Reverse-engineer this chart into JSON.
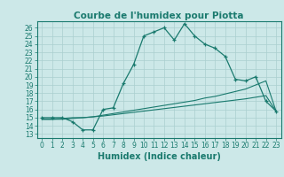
{
  "title": "Courbe de l'humidex pour Piotta",
  "xlabel": "Humidex (Indice chaleur)",
  "background_color": "#cce8e8",
  "line_color": "#1a7a6e",
  "grid_color": "#aacfcf",
  "x_ticks": [
    0,
    1,
    2,
    3,
    4,
    5,
    6,
    7,
    8,
    9,
    10,
    11,
    12,
    13,
    14,
    15,
    16,
    17,
    18,
    19,
    20,
    21,
    22,
    23
  ],
  "y_ticks": [
    13,
    14,
    15,
    16,
    17,
    18,
    19,
    20,
    21,
    22,
    23,
    24,
    25,
    26
  ],
  "xlim": [
    -0.5,
    23.5
  ],
  "ylim": [
    12.5,
    26.8
  ],
  "series1_x": [
    0,
    1,
    2,
    3,
    4,
    5,
    6,
    7,
    8,
    9,
    10,
    11,
    12,
    13,
    14,
    15,
    16,
    17,
    18,
    19,
    20,
    21,
    22,
    23
  ],
  "series1_y": [
    15.0,
    15.0,
    15.0,
    14.5,
    13.5,
    13.5,
    16.0,
    16.2,
    19.2,
    21.5,
    25.0,
    25.5,
    26.0,
    24.5,
    26.5,
    25.0,
    24.0,
    23.5,
    22.5,
    19.7,
    19.5,
    20.0,
    17.0,
    15.8
  ],
  "series2_x": [
    0,
    1,
    2,
    3,
    4,
    5,
    6,
    7,
    8,
    9,
    10,
    11,
    12,
    13,
    14,
    15,
    16,
    17,
    18,
    19,
    20,
    21,
    22,
    23
  ],
  "series2_y": [
    14.8,
    14.8,
    14.9,
    15.0,
    15.0,
    15.1,
    15.3,
    15.5,
    15.7,
    15.9,
    16.1,
    16.3,
    16.5,
    16.7,
    16.9,
    17.1,
    17.4,
    17.6,
    17.9,
    18.2,
    18.5,
    19.0,
    19.5,
    15.8
  ],
  "series3_x": [
    0,
    1,
    2,
    3,
    4,
    5,
    6,
    7,
    8,
    9,
    10,
    11,
    12,
    13,
    14,
    15,
    16,
    17,
    18,
    19,
    20,
    21,
    22,
    23
  ],
  "series3_y": [
    14.8,
    14.8,
    14.8,
    14.9,
    15.0,
    15.1,
    15.2,
    15.35,
    15.5,
    15.65,
    15.8,
    15.95,
    16.1,
    16.25,
    16.4,
    16.55,
    16.7,
    16.85,
    17.0,
    17.15,
    17.3,
    17.5,
    17.7,
    15.8
  ],
  "title_fontsize": 7.5,
  "xlabel_fontsize": 7,
  "tick_fontsize": 5.5
}
